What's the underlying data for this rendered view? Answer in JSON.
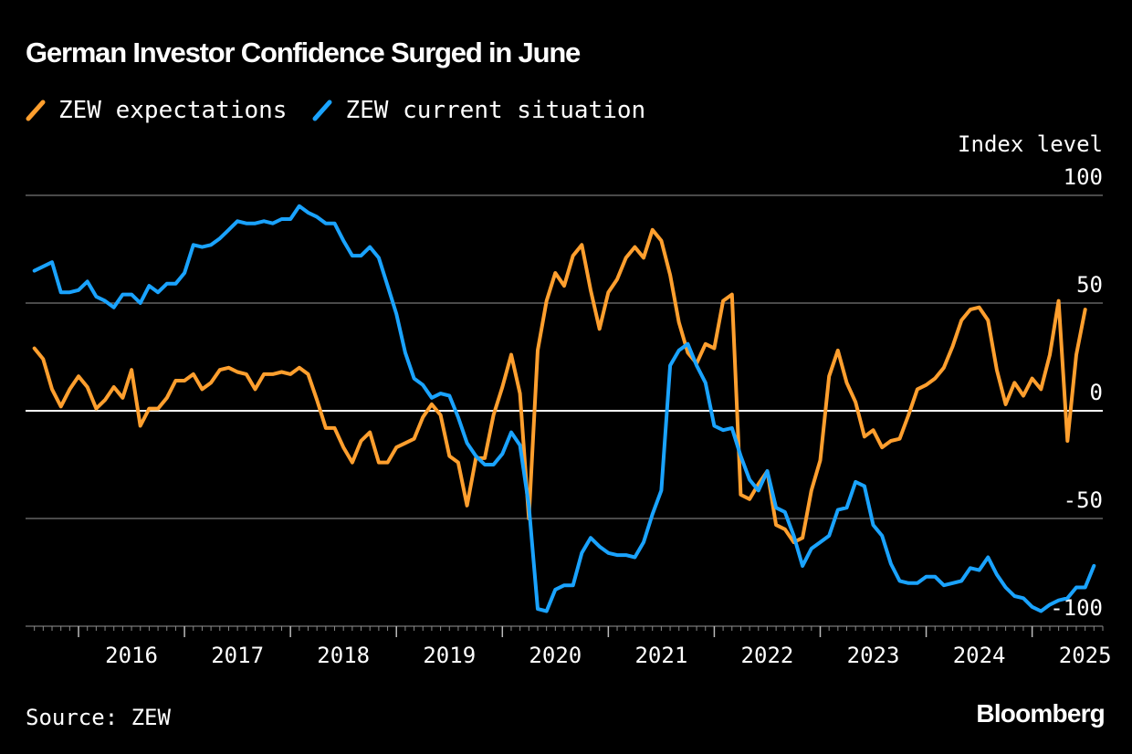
{
  "title": "German Investor Confidence Surged in June",
  "source": "Source: ZEW",
  "brand": "Bloomberg",
  "colors": {
    "expectations": "#ff9f2e",
    "current": "#1aa3ff",
    "grid": "#777777",
    "zero": "#ffffff"
  },
  "chart_data": {
    "type": "line",
    "title": "German Investor Confidence Surged in June",
    "ylabel": "Index level",
    "ylim": [
      -100,
      100
    ],
    "yticks": [
      100,
      50,
      0,
      -50,
      -100
    ],
    "xlim": [
      "2015-07",
      "2025-09"
    ],
    "xticks": [
      "2016",
      "2017",
      "2018",
      "2019",
      "2020",
      "2021",
      "2022",
      "2023",
      "2024",
      "2025"
    ],
    "grid": true,
    "legend_position": "top-left",
    "series": [
      {
        "name": "ZEW expectations",
        "color": "#ff9f2e",
        "start": "2015-08",
        "frequency": "monthly",
        "values": [
          29,
          24,
          10,
          2,
          10,
          16,
          11,
          1,
          5,
          11,
          6,
          19,
          -7,
          1,
          1,
          6,
          14,
          14,
          17,
          10,
          13,
          19,
          20,
          18,
          17,
          10,
          17,
          17,
          18,
          17,
          20,
          17,
          5,
          -8,
          -8,
          -17,
          -24,
          -14,
          -10,
          -24,
          -24,
          -17,
          -15,
          -13,
          -3,
          3,
          -2,
          -21,
          -24,
          -44,
          -22,
          -22,
          -2,
          11,
          26,
          8,
          -50,
          28,
          51,
          64,
          58,
          72,
          77,
          56,
          38,
          55,
          61,
          71,
          76,
          71,
          84,
          79,
          63,
          41,
          27,
          22,
          31,
          29,
          51,
          54,
          -39,
          -41,
          -34,
          -28,
          -53,
          -55,
          -61,
          -59,
          -37,
          -23,
          16,
          28,
          13,
          4,
          -12,
          -9,
          -17,
          -14,
          -13,
          -2,
          10,
          12,
          15,
          20,
          30,
          42,
          47,
          48,
          42,
          19,
          3,
          13,
          7,
          15,
          10,
          26,
          51,
          -14,
          26,
          47
        ]
      },
      {
        "name": "ZEW current situation",
        "color": "#1aa3ff",
        "start": "2015-08",
        "frequency": "monthly",
        "values": [
          65,
          67,
          69,
          55,
          55,
          56,
          60,
          53,
          51,
          48,
          54,
          54,
          50,
          58,
          55,
          59,
          59,
          64,
          77,
          76,
          77,
          80,
          84,
          88,
          87,
          87,
          88,
          87,
          89,
          89,
          95,
          92,
          90,
          87,
          87,
          79,
          72,
          72,
          76,
          71,
          58,
          45,
          27,
          15,
          12,
          6,
          8,
          7,
          -3,
          -15,
          -21,
          -25,
          -25,
          -20,
          -10,
          -16,
          -44,
          -92,
          -93,
          -83,
          -81,
          -81,
          -66,
          -59,
          -63,
          -66,
          -67,
          -67,
          -68,
          -61,
          -48,
          -37,
          21,
          28,
          31,
          21,
          13,
          -7,
          -9,
          -8,
          -21,
          -32,
          -37,
          -28,
          -45,
          -47,
          -58,
          -72,
          -64,
          -61,
          -58,
          -46,
          -45,
          -33,
          -35,
          -53,
          -58,
          -71,
          -79,
          -80,
          -80,
          -77,
          -77,
          -81,
          -80,
          -79,
          -73,
          -74,
          -68,
          -76,
          -82,
          -86,
          -87,
          -91,
          -93,
          -90,
          -88,
          -87,
          -82,
          -82,
          -72
        ]
      }
    ]
  }
}
